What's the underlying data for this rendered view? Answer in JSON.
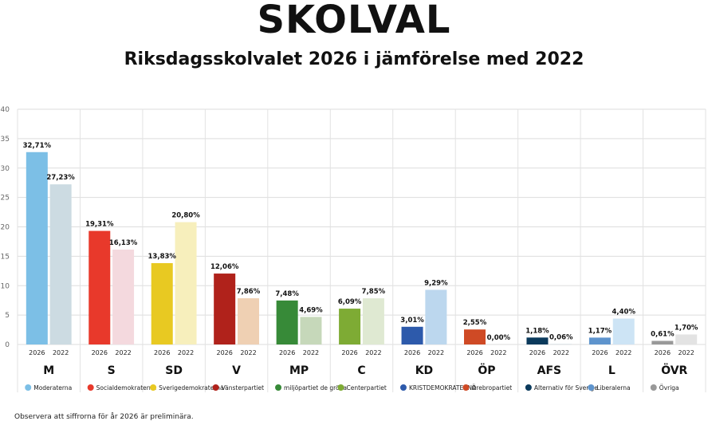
{
  "header": {
    "title": "SKOLVAL",
    "subtitle": "Riksdagsskolvalet 2026 i jämförelse med 2022"
  },
  "footnote": "Observera att siffrorna för år 2026 är preliminära.",
  "chart_data": {
    "type": "bar",
    "ylim": [
      0,
      40
    ],
    "yticks": [
      0,
      5,
      10,
      15,
      20,
      25,
      30,
      35,
      40
    ],
    "grid": true,
    "legend": "none",
    "year_labels": [
      "2026",
      "2022"
    ],
    "categories": [
      "M",
      "S",
      "SD",
      "V",
      "MP",
      "C",
      "KD",
      "ÖP",
      "AFS",
      "L",
      "ÖVR"
    ],
    "party_names": [
      "Moderaterna",
      "Socialdemokraterna",
      "Sverigedemokraterna",
      "Vänsterpartiet",
      "miljöpartiet de gröna",
      "Centerpartiet",
      "KRISTDEMOKRATERNA",
      "Örebropartiet",
      "Alternativ för Sverige",
      "Liberalerna",
      "Övriga"
    ],
    "series": [
      {
        "values": [
          32.71,
          19.31,
          13.83,
          12.06,
          7.48,
          6.09,
          3.01,
          2.55,
          1.18,
          1.17,
          0.61
        ],
        "labels": [
          "32,71%",
          "19,31%",
          "13,83%",
          "12,06%",
          "7,48%",
          "6,09%",
          "3,01%",
          "2,55%",
          "1,18%",
          "1,17%",
          "0,61%"
        ],
        "colors": [
          "#7cbfe6",
          "#e8392b",
          "#e8c922",
          "#b0221b",
          "#378a38",
          "#7eab34",
          "#2d5aab",
          "#cf4a25",
          "#0b3a5c",
          "#5e94cd",
          "#999999"
        ]
      },
      {
        "values": [
          27.23,
          16.13,
          20.8,
          7.86,
          4.69,
          7.85,
          9.29,
          0.0,
          0.06,
          4.4,
          1.7
        ],
        "labels": [
          "27,23%",
          "16,13%",
          "20,80%",
          "7,86%",
          "4,69%",
          "7,85%",
          "9,29%",
          "0,00%",
          "0,06%",
          "4,40%",
          "1,70%"
        ],
        "colors": [
          "#ccdbe2",
          "#f4d9de",
          "#f7efbc",
          "#efd0b3",
          "#c6d8ba",
          "#dfe9d2",
          "#bcd7ee",
          "#f2dbd0",
          "#c4cfd8",
          "#cde4f5",
          "#e3e3e3"
        ]
      }
    ]
  }
}
